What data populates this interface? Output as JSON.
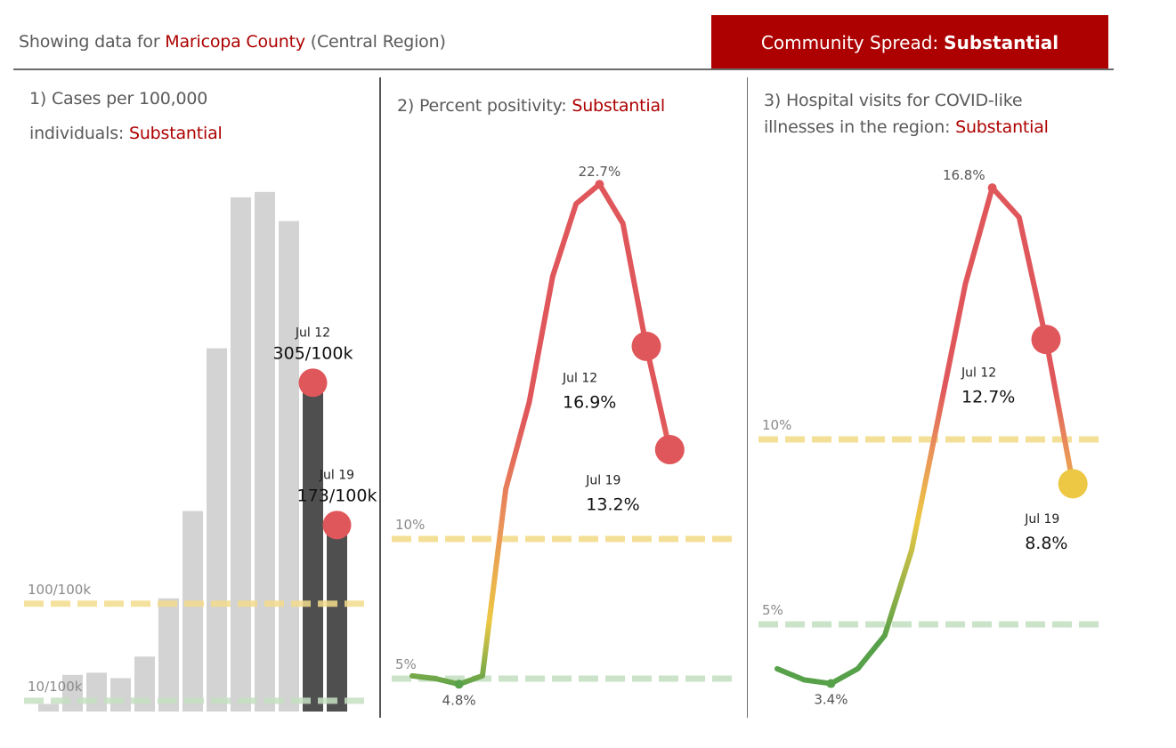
{
  "header": {
    "prefix": "Showing data for",
    "county": "Maricopa County",
    "region": "(Central Region)"
  },
  "spread": {
    "label": "Community Spread:",
    "level": "Substantial"
  },
  "colors": {
    "brand_red": "#ad0000",
    "marker_red": "#e0575b",
    "marker_yellow": "#ecc844",
    "green": "#57a14a",
    "bar_gray": "#d3d3d3",
    "bar_dark": "#4f4f4f",
    "threshold_yellow": "#f3dc8c",
    "threshold_green": "#c6e0c3"
  },
  "panels": [
    {
      "title_line1": "1) Cases per 100,000",
      "title_line2": "individuals:",
      "status": "Substantial"
    },
    {
      "title_line1": "2) Percent positivity:",
      "status": "Substantial"
    },
    {
      "title_line1": "3) Hospital visits for COVID-like",
      "title_line2": "illnesses in the region:",
      "status": "Substantial"
    }
  ],
  "chart_data": [
    {
      "type": "bar",
      "title": "1) Cases per 100,000 individuals: Substantial",
      "values": [
        7,
        34,
        36,
        31,
        51,
        105,
        186,
        337,
        477,
        482,
        455,
        305,
        173
      ],
      "highlighted_indices": [
        11,
        12
      ],
      "ylim": [
        0,
        500
      ],
      "thresholds": [
        {
          "value": 100,
          "label": "100/100k",
          "color": "yellow"
        },
        {
          "value": 10,
          "label": "10/100k",
          "color": "green"
        }
      ],
      "annotations": [
        {
          "index": 11,
          "date": "Jul 12",
          "label": "305/100k"
        },
        {
          "index": 12,
          "date": "Jul 19",
          "label": "173/100k"
        }
      ]
    },
    {
      "type": "line",
      "title": "2) Percent positivity: Substantial",
      "values": [
        5.1,
        5.0,
        4.8,
        5.1,
        11.8,
        14.9,
        19.4,
        22.0,
        22.7,
        21.3,
        16.9,
        13.2
      ],
      "ylim": [
        4,
        23.5
      ],
      "thresholds": [
        {
          "value": 10,
          "label": "10%",
          "color": "yellow"
        },
        {
          "value": 5,
          "label": "5%",
          "color": "green"
        }
      ],
      "min_label": "4.8%",
      "max_label": "22.7%",
      "annotations": [
        {
          "index": 10,
          "date": "Jul 12",
          "label": "16.9%"
        },
        {
          "index": 11,
          "date": "Jul 19",
          "label": "13.2%"
        }
      ]
    },
    {
      "type": "line",
      "title": "3) Hospital visits for COVID-like illnesses in the region: Substantial",
      "values": [
        3.8,
        3.5,
        3.4,
        3.8,
        4.7,
        7.0,
        10.6,
        14.2,
        16.8,
        16.0,
        12.7,
        8.8
      ],
      "ylim": [
        3,
        17.5
      ],
      "thresholds": [
        {
          "value": 10,
          "label": "10%",
          "color": "yellow"
        },
        {
          "value": 5,
          "label": "5%",
          "color": "green"
        }
      ],
      "min_label": "3.4%",
      "max_label": "16.8%",
      "annotations": [
        {
          "index": 10,
          "date": "Jul 12",
          "label": "12.7%"
        },
        {
          "index": 11,
          "date": "Jul 19",
          "label": "8.8%"
        }
      ]
    }
  ]
}
